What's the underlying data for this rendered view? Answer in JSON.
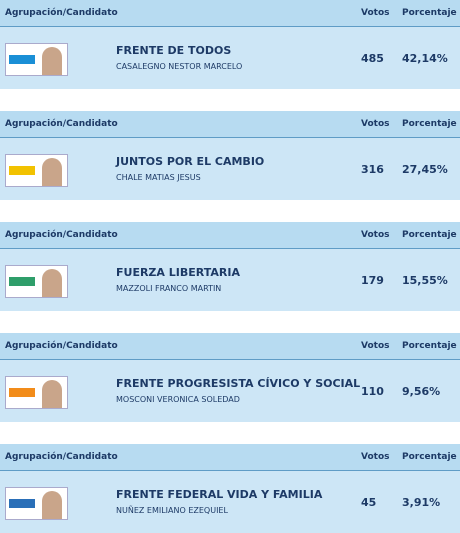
{
  "header": {
    "group": "Agrupación/Candidato",
    "votes": "Votos",
    "percent": "Porcentaje"
  },
  "rows": [
    {
      "party": "FRENTE DE TODOS",
      "candidate": "CASALEGNO NESTOR MARCELO",
      "votes": 485,
      "percent": "42,14%",
      "logo_color": "#1a8fd6"
    },
    {
      "party": "JUNTOS POR EL CAMBIO",
      "candidate": "CHALE MATIAS JESUS",
      "votes": 316,
      "percent": "27,45%",
      "logo_color": "#f2c200"
    },
    {
      "party": "FUERZA LIBERTARIA",
      "candidate": "MAZZOLI FRANCO MARTIN",
      "votes": 179,
      "percent": "15,55%",
      "logo_color": "#2f9e6a"
    },
    {
      "party": "FRENTE PROGRESISTA CÍVICO Y SOCIAL",
      "candidate": "MOSCONI VERONICA SOLEDAD",
      "votes": 110,
      "percent": "9,56%",
      "logo_color": "#f28c1a"
    },
    {
      "party": "FRENTE FEDERAL VIDA Y FAMILIA",
      "candidate": "NUÑEZ EMILIANO EZEQUIEL",
      "votes": 45,
      "percent": "3,91%",
      "logo_color": "#2a6fb8"
    }
  ]
}
